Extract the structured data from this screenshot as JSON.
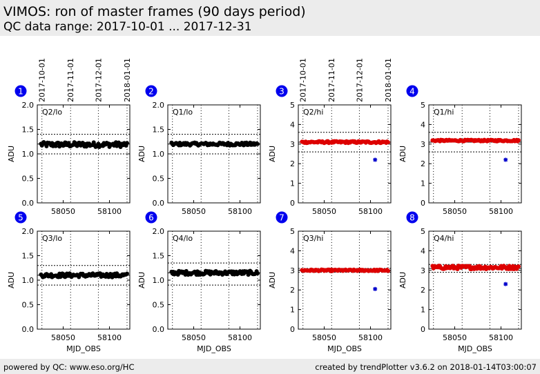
{
  "header": {
    "title": "VIMOS: ron of master frames (90 days period)",
    "subtitle": "QC data range: 2017-10-01 ... 2017-12-31"
  },
  "footer": {
    "left": "powered by QC: www.eso.org/HC",
    "right": "created by trendPlotter v3.6.2 on 2018-01-14T03:00:07"
  },
  "colors": {
    "lo_points": "#000000",
    "hi_points": "#dd0000",
    "outlier": "#0000cc",
    "badge": "#0000ee"
  },
  "date_axis": {
    "ticks": [
      "2017-10-01",
      "2017-11-01",
      "2017-12-01",
      "2018-01-01"
    ],
    "mjd": [
      58027,
      58058,
      58088,
      58119
    ]
  },
  "chart_data": [
    {
      "type": "scatter",
      "badge": "1",
      "label": "Q2/lo",
      "xlabel": "MJD_OBS",
      "ylabel": "ADU",
      "xlim": [
        58022,
        58122
      ],
      "ylim": [
        0.0,
        2.0
      ],
      "yticks": [
        "0.0",
        "0.5",
        "1.0",
        "1.5",
        "2.0"
      ],
      "xticks": [
        "58050",
        "58100"
      ],
      "ref_lines": [
        1.0,
        1.2,
        1.4
      ],
      "show_top_dates": true,
      "show_xlabel": false,
      "mean": 1.19,
      "spread": 0.05,
      "points_color": "lo",
      "outliers": []
    },
    {
      "type": "scatter",
      "badge": "2",
      "label": "Q1/lo",
      "xlabel": "MJD_OBS",
      "ylabel": "ADU",
      "xlim": [
        58022,
        58122
      ],
      "ylim": [
        0.0,
        2.0
      ],
      "yticks": [
        "0.0",
        "0.5",
        "1.0",
        "1.5",
        "2.0"
      ],
      "xticks": [
        "58050",
        "58100"
      ],
      "ref_lines": [
        1.0,
        1.2,
        1.4
      ],
      "show_top_dates": false,
      "show_xlabel": false,
      "mean": 1.2,
      "spread": 0.03,
      "points_color": "lo",
      "outliers": []
    },
    {
      "type": "scatter",
      "badge": "3",
      "label": "Q2/hi",
      "xlabel": "MJD_OBS",
      "ylabel": "ADU",
      "xlim": [
        58022,
        58122
      ],
      "ylim": [
        0,
        5
      ],
      "yticks": [
        "0",
        "1",
        "2",
        "3",
        "4",
        "5"
      ],
      "xticks": [
        "58050",
        "58100"
      ],
      "ref_lines": [
        2.6,
        3.1,
        3.6
      ],
      "show_top_dates": true,
      "show_xlabel": false,
      "mean": 3.1,
      "spread": 0.05,
      "points_color": "hi",
      "outliers": [
        [
          58105,
          2.2
        ]
      ]
    },
    {
      "type": "scatter",
      "badge": "4",
      "label": "Q1/hi",
      "xlabel": "MJD_OBS",
      "ylabel": "ADU",
      "xlim": [
        58022,
        58122
      ],
      "ylim": [
        0,
        5
      ],
      "yticks": [
        "0",
        "1",
        "2",
        "3",
        "4",
        "5"
      ],
      "xticks": [
        "58050",
        "58100"
      ],
      "ref_lines": [
        2.6,
        3.1,
        3.6
      ],
      "show_top_dates": false,
      "show_xlabel": false,
      "mean": 3.18,
      "spread": 0.04,
      "points_color": "hi",
      "outliers": [
        [
          58105,
          2.2
        ]
      ]
    },
    {
      "type": "scatter",
      "badge": "5",
      "label": "Q3/lo",
      "xlabel": "MJD_OBS",
      "ylabel": "ADU",
      "xlim": [
        58022,
        58122
      ],
      "ylim": [
        0.0,
        2.0
      ],
      "yticks": [
        "0.0",
        "0.5",
        "1.0",
        "1.5",
        "2.0"
      ],
      "xticks": [
        "58050",
        "58100"
      ],
      "ref_lines": [
        0.9,
        1.1,
        1.3
      ],
      "show_top_dates": false,
      "show_xlabel": true,
      "mean": 1.1,
      "spread": 0.04,
      "points_color": "lo",
      "outliers": []
    },
    {
      "type": "scatter",
      "badge": "6",
      "label": "Q4/lo",
      "xlabel": "MJD_OBS",
      "ylabel": "ADU",
      "xlim": [
        58022,
        58122
      ],
      "ylim": [
        0.0,
        2.0
      ],
      "yticks": [
        "0.0",
        "0.5",
        "1.0",
        "1.5",
        "2.0"
      ],
      "xticks": [
        "58050",
        "58100"
      ],
      "ref_lines": [
        0.9,
        1.15,
        1.35
      ],
      "show_top_dates": false,
      "show_xlabel": true,
      "mean": 1.15,
      "spread": 0.04,
      "points_color": "lo",
      "outliers": []
    },
    {
      "type": "scatter",
      "badge": "7",
      "label": "Q3/hi",
      "xlabel": "MJD_OBS",
      "ylabel": "ADU",
      "xlim": [
        58022,
        58122
      ],
      "ylim": [
        0,
        5
      ],
      "yticks": [
        "0",
        "1",
        "2",
        "3",
        "4",
        "5"
      ],
      "xticks": [
        "58050",
        "58100"
      ],
      "ref_lines": [
        2.9,
        3.0,
        3.1
      ],
      "show_top_dates": false,
      "show_xlabel": true,
      "mean": 3.0,
      "spread": 0.04,
      "points_color": "hi",
      "outliers": [
        [
          58105,
          2.05
        ]
      ]
    },
    {
      "type": "scatter",
      "badge": "8",
      "label": "Q4/hi",
      "xlabel": "MJD_OBS",
      "ylabel": "ADU",
      "xlim": [
        58022,
        58122
      ],
      "ylim": [
        0,
        5
      ],
      "yticks": [
        "0",
        "1",
        "2",
        "3",
        "4",
        "5"
      ],
      "xticks": [
        "58050",
        "58100"
      ],
      "ref_lines": [
        2.9,
        3.1,
        3.3
      ],
      "show_top_dates": false,
      "show_xlabel": true,
      "mean": 3.15,
      "spread": 0.09,
      "points_color": "hi",
      "outliers": [
        [
          58105,
          2.3
        ]
      ]
    }
  ]
}
